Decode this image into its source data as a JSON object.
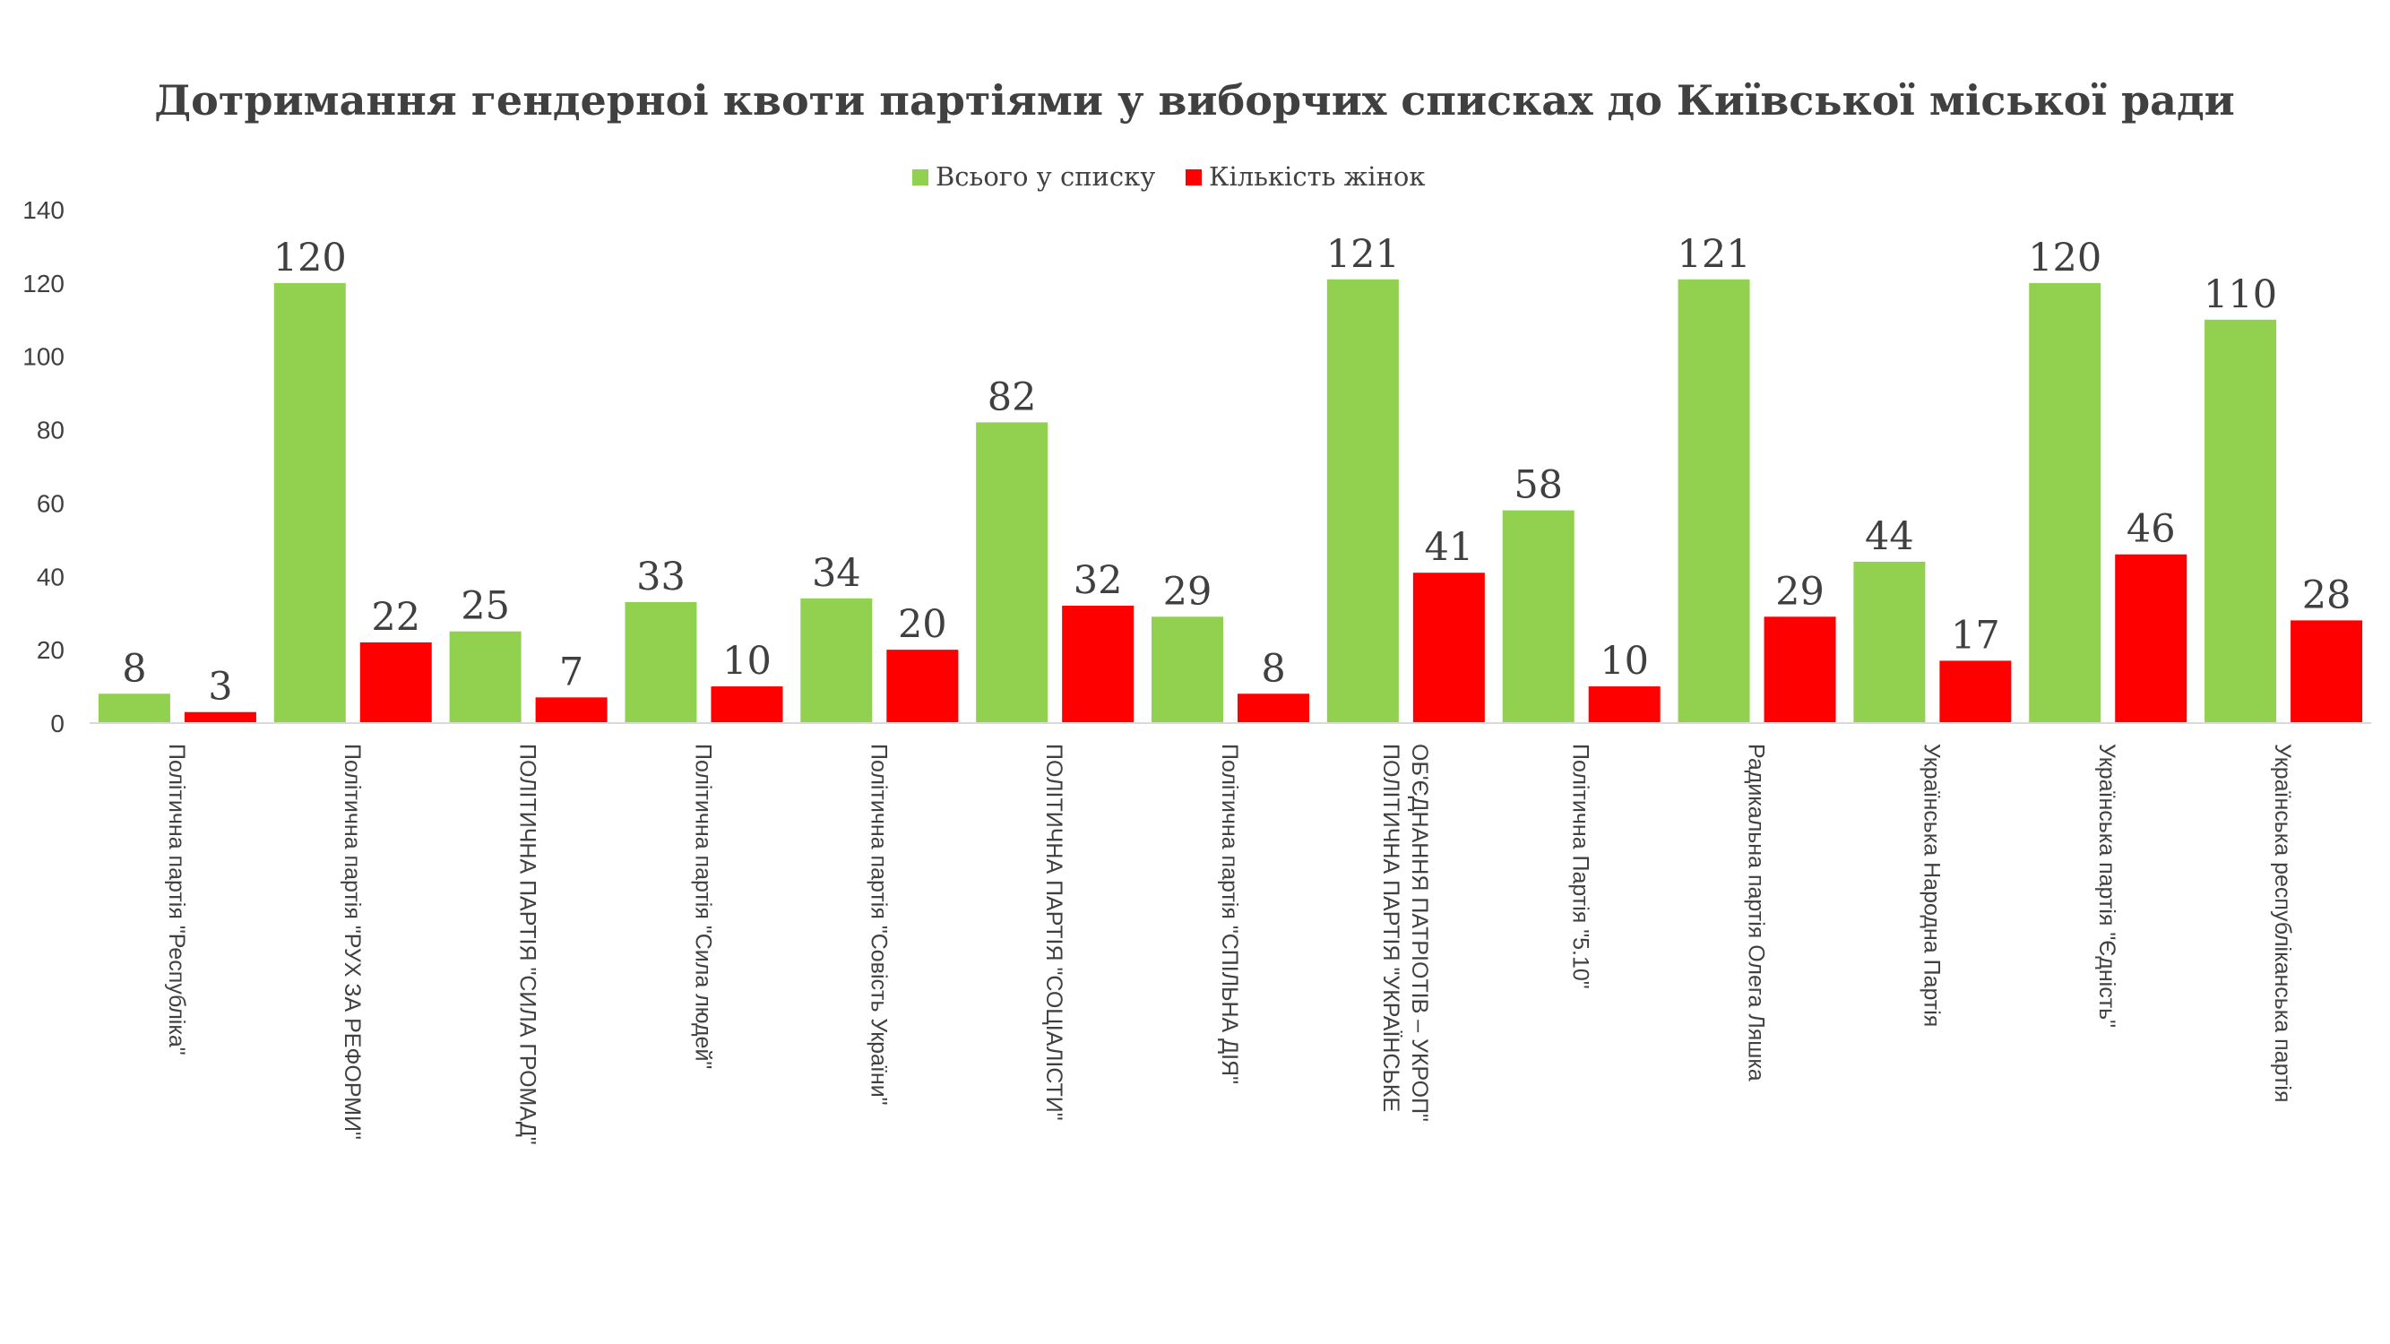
{
  "chart_data": {
    "type": "bar",
    "title": "Дотримання гендерноі квоти партіями у виборчих списках до Київської міської ради",
    "categories": [
      [
        "Політична партія \"Республіка\""
      ],
      [
        "Політична партія \"РУХ ЗА РЕФОРМИ\""
      ],
      [
        "ПОЛІТИЧНА ПАРТІЯ \"СИЛА ГРОМАД\""
      ],
      [
        "Політична партія \"Сила людей\""
      ],
      [
        "Політична партія \"Совість України\""
      ],
      [
        "ПОЛІТИЧНА ПАРТІЯ \"СОЦІАЛІСТИ\""
      ],
      [
        "Політична партія \"СПІЛЬНА ДІЯ\""
      ],
      [
        "ПОЛІТИЧНА ПАРТІЯ \"УКРАЇНСЬКЕ",
        "ОБ'ЄДНАННЯ ПАТРІОТІВ – УКРОП\""
      ],
      [
        "Політична Партія \"5.10\""
      ],
      [
        "Радикальна партія Олега Ляшка"
      ],
      [
        "Українська Народна Партія"
      ],
      [
        "Українська партія \"Єдність\""
      ],
      [
        "Українська республіканська партія"
      ]
    ],
    "series": [
      {
        "name": "Всього у списку",
        "color": "#92D050",
        "values": [
          8,
          120,
          25,
          33,
          34,
          82,
          29,
          121,
          58,
          121,
          44,
          120,
          110
        ]
      },
      {
        "name": "Кількість жінок",
        "color": "#FF0000",
        "values": [
          3,
          22,
          7,
          10,
          20,
          32,
          8,
          41,
          10,
          29,
          17,
          46,
          28
        ]
      }
    ],
    "ylim": [
      0,
      140
    ],
    "yticks": [
      0,
      20,
      40,
      60,
      80,
      100,
      120,
      140
    ],
    "legend_position": "top-center",
    "grid": false
  }
}
